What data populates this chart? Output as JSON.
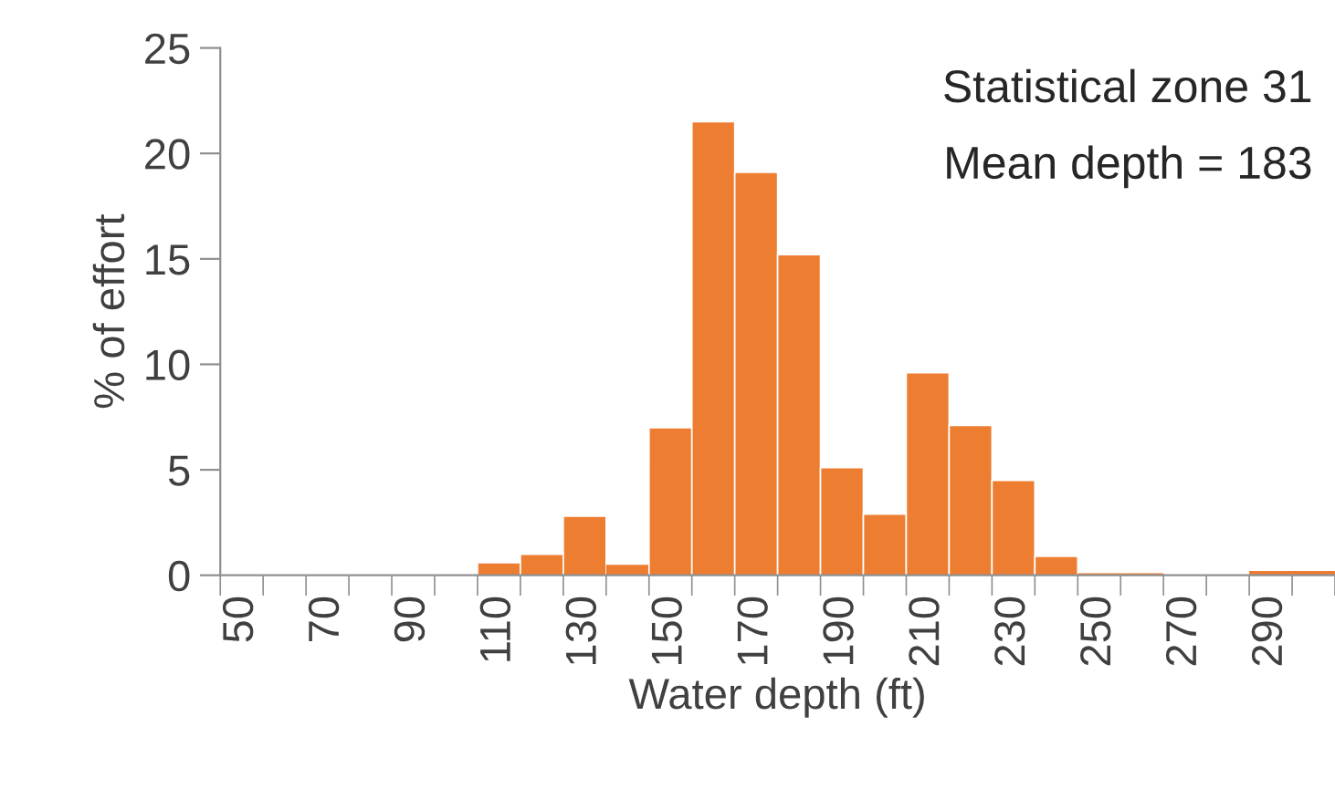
{
  "chart_data": {
    "type": "bar",
    "xlabel": "Water depth (ft)",
    "ylabel": "% of effort",
    "annotations": [
      "Statistical zone 31",
      "Mean depth = 183"
    ],
    "categories": [
      "50",
      null,
      "70",
      null,
      "90",
      null,
      "110",
      null,
      "130",
      null,
      "150",
      null,
      "170",
      null,
      "190",
      null,
      "210",
      null,
      "230",
      null,
      "250",
      null,
      "270",
      null,
      "290",
      null
    ],
    "values": [
      0,
      0,
      0,
      0,
      0,
      0,
      0.6,
      1.0,
      2.8,
      0.5,
      7.0,
      21.5,
      19.1,
      15.2,
      5.1,
      2.9,
      9.6,
      7.1,
      4.5,
      0.9,
      0.1,
      0.1,
      0,
      0,
      0.2,
      0.2
    ],
    "color": "#ed7d31",
    "ylim": [
      0,
      25
    ],
    "yticks": [
      0,
      5,
      10,
      15,
      20,
      25
    ],
    "grid": false
  }
}
